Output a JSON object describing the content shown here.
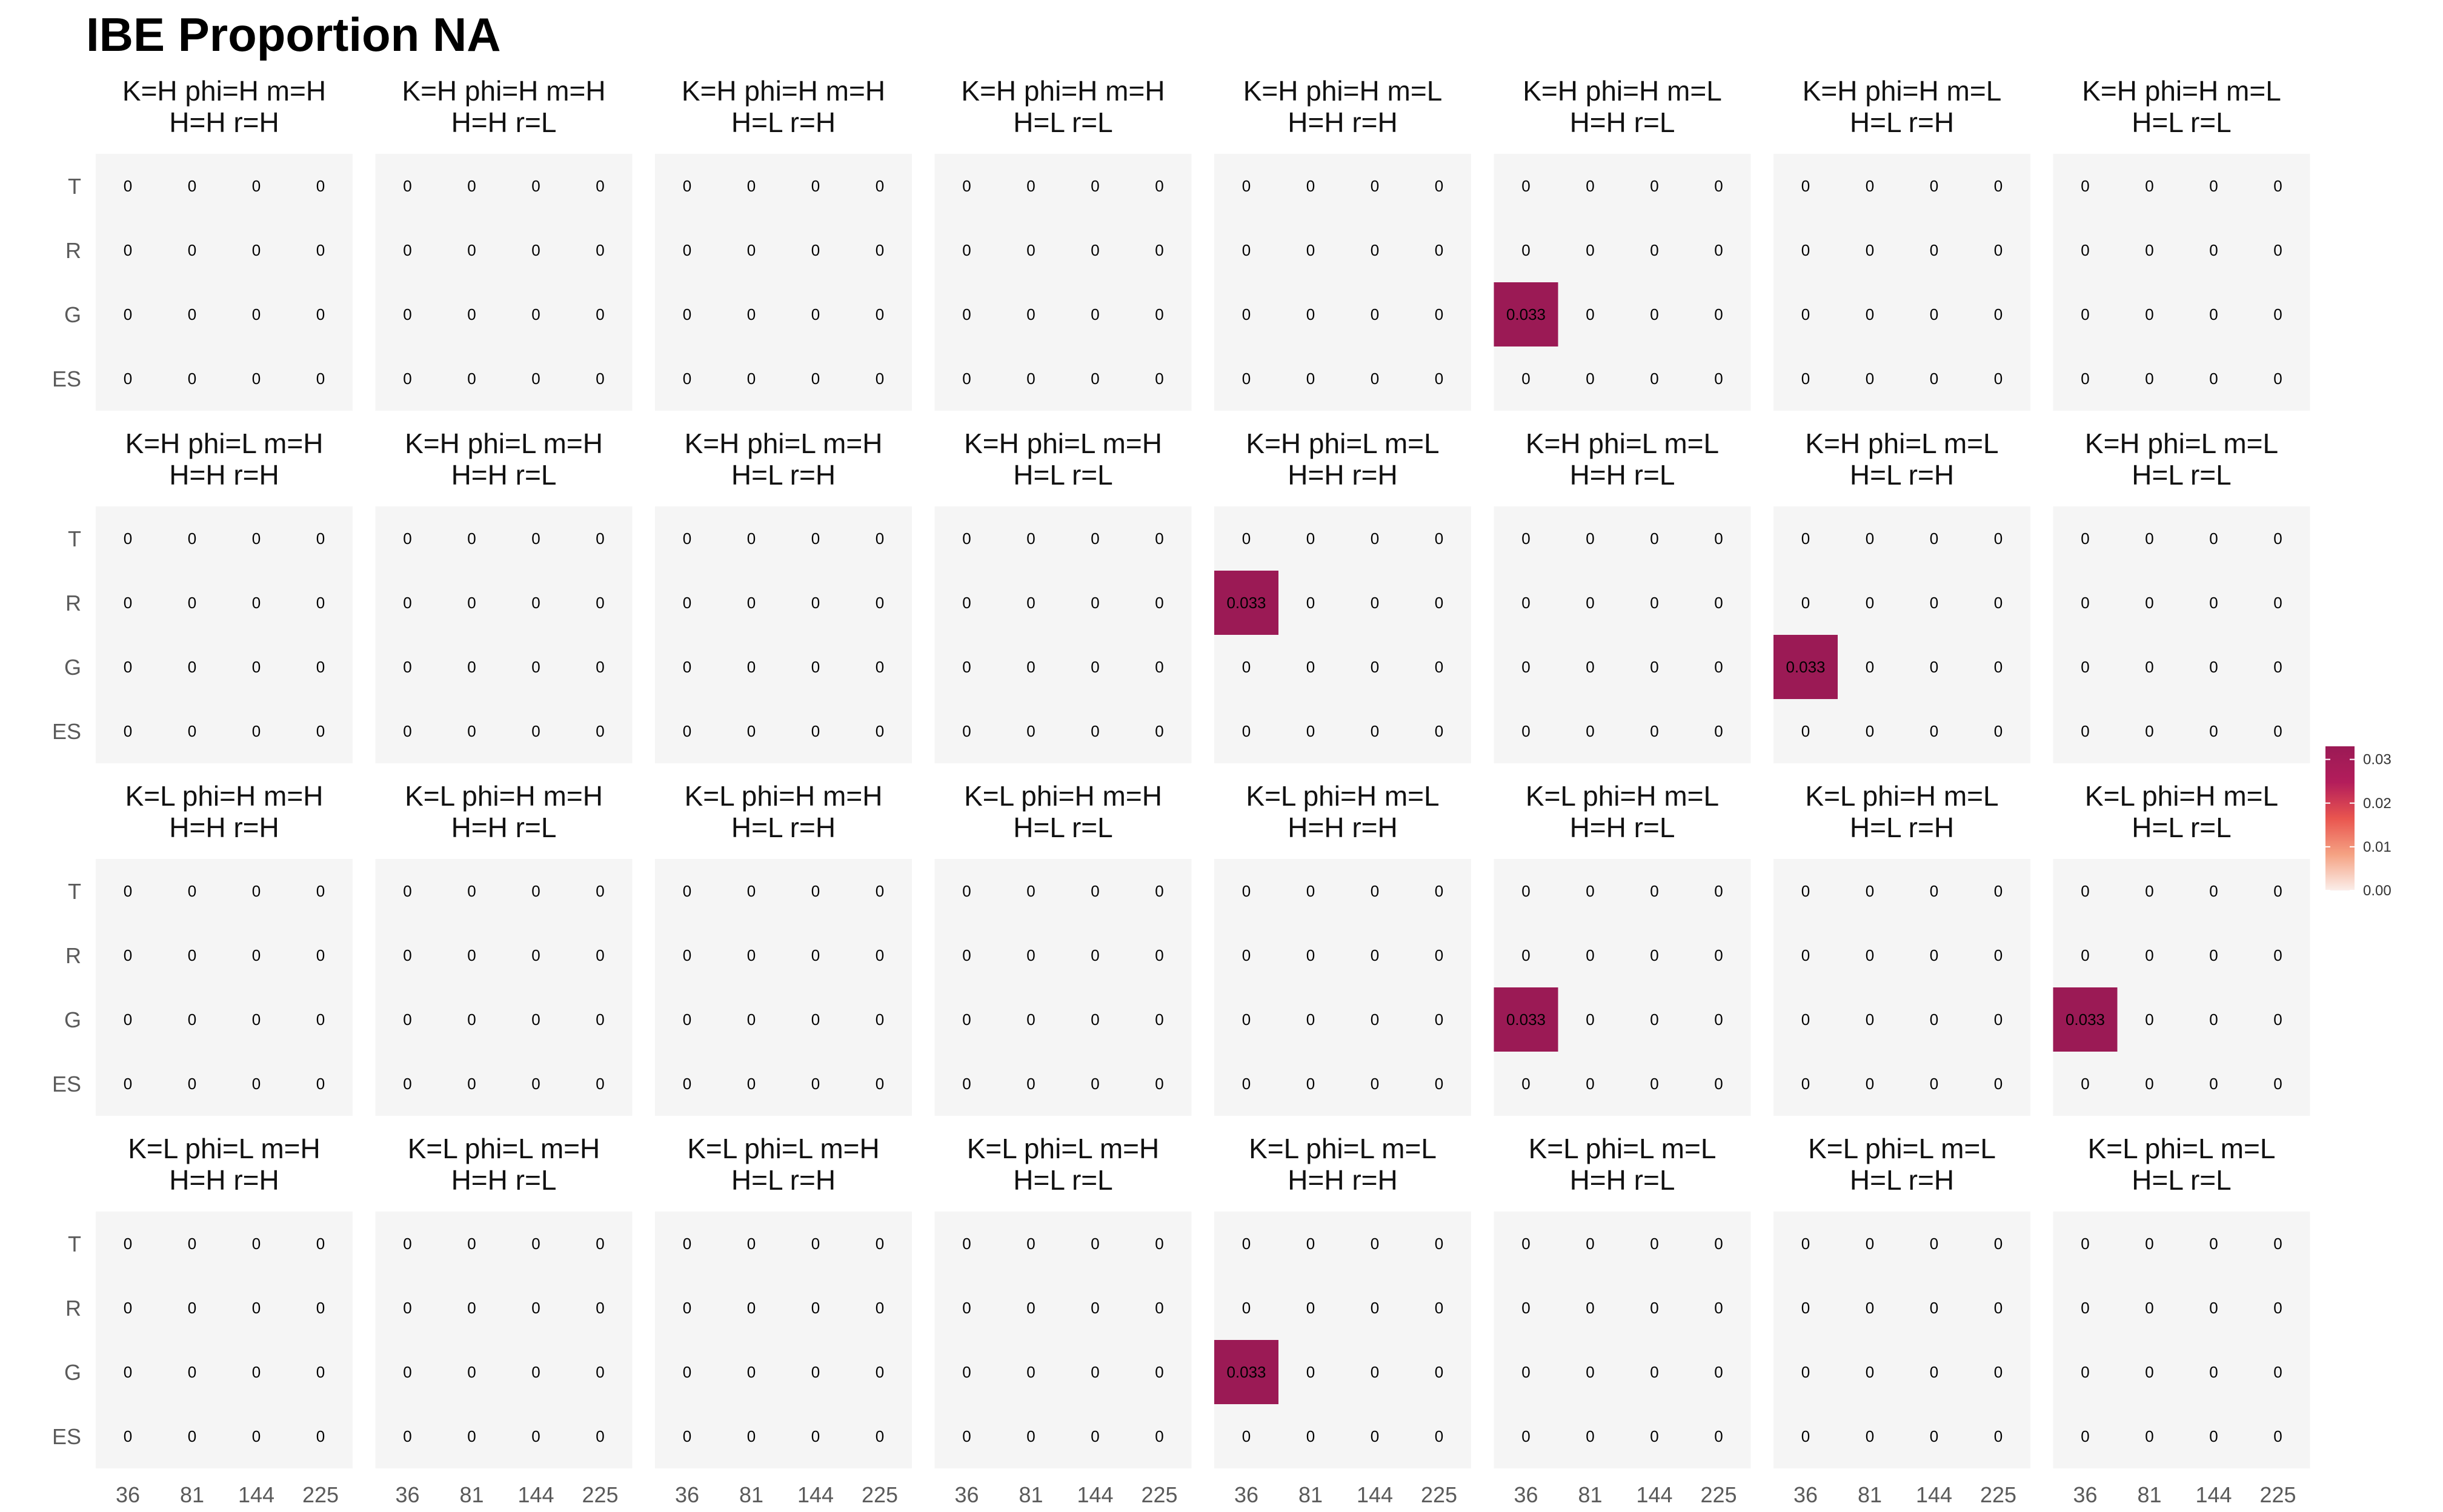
{
  "chart_data": {
    "type": "heatmap",
    "title": "IBE Proportion NA",
    "x_categories": [
      "36",
      "81",
      "144",
      "225"
    ],
    "y_categories": [
      "T",
      "R",
      "G",
      "ES"
    ],
    "facet_layout": {
      "rows": 4,
      "cols": 8
    },
    "facets": [
      {
        "label": [
          "K=H phi=H m=H",
          "H=H r=H"
        ]
      },
      {
        "label": [
          "K=H phi=H m=H",
          "H=H r=L"
        ]
      },
      {
        "label": [
          "K=H phi=H m=H",
          "H=L r=H"
        ]
      },
      {
        "label": [
          "K=H phi=H m=H",
          "H=L r=L"
        ]
      },
      {
        "label": [
          "K=H phi=H m=L",
          "H=H r=H"
        ]
      },
      {
        "label": [
          "K=H phi=H m=L",
          "H=H r=L"
        ],
        "nonzero": [
          {
            "x": "36",
            "y": "G",
            "value": 0.033
          }
        ]
      },
      {
        "label": [
          "K=H phi=H m=L",
          "H=L r=H"
        ]
      },
      {
        "label": [
          "K=H phi=H m=L",
          "H=L r=L"
        ]
      },
      {
        "label": [
          "K=H phi=L m=H",
          "H=H r=H"
        ]
      },
      {
        "label": [
          "K=H phi=L m=H",
          "H=H r=L"
        ]
      },
      {
        "label": [
          "K=H phi=L m=H",
          "H=L r=H"
        ]
      },
      {
        "label": [
          "K=H phi=L m=H",
          "H=L r=L"
        ]
      },
      {
        "label": [
          "K=H phi=L m=L",
          "H=H r=H"
        ],
        "nonzero": [
          {
            "x": "36",
            "y": "R",
            "value": 0.033
          }
        ]
      },
      {
        "label": [
          "K=H phi=L m=L",
          "H=H r=L"
        ]
      },
      {
        "label": [
          "K=H phi=L m=L",
          "H=L r=H"
        ],
        "nonzero": [
          {
            "x": "36",
            "y": "G",
            "value": 0.033
          }
        ]
      },
      {
        "label": [
          "K=H phi=L m=L",
          "H=L r=L"
        ]
      },
      {
        "label": [
          "K=L phi=H m=H",
          "H=H r=H"
        ]
      },
      {
        "label": [
          "K=L phi=H m=H",
          "H=H r=L"
        ]
      },
      {
        "label": [
          "K=L phi=H m=H",
          "H=L r=H"
        ]
      },
      {
        "label": [
          "K=L phi=H m=H",
          "H=L r=L"
        ]
      },
      {
        "label": [
          "K=L phi=H m=L",
          "H=H r=H"
        ]
      },
      {
        "label": [
          "K=L phi=H m=L",
          "H=H r=L"
        ],
        "nonzero": [
          {
            "x": "36",
            "y": "G",
            "value": 0.033
          }
        ]
      },
      {
        "label": [
          "K=L phi=H m=L",
          "H=L r=H"
        ]
      },
      {
        "label": [
          "K=L phi=H m=L",
          "H=L r=L"
        ],
        "nonzero": [
          {
            "x": "36",
            "y": "G",
            "value": 0.033
          }
        ]
      },
      {
        "label": [
          "K=L phi=L m=H",
          "H=H r=H"
        ]
      },
      {
        "label": [
          "K=L phi=L m=H",
          "H=H r=L"
        ]
      },
      {
        "label": [
          "K=L phi=L m=H",
          "H=L r=H"
        ]
      },
      {
        "label": [
          "K=L phi=L m=H",
          "H=L r=L"
        ]
      },
      {
        "label": [
          "K=L phi=L m=L",
          "H=H r=H"
        ],
        "nonzero": [
          {
            "x": "36",
            "y": "G",
            "value": 0.033
          }
        ]
      },
      {
        "label": [
          "K=L phi=L m=L",
          "H=H r=L"
        ]
      },
      {
        "label": [
          "K=L phi=L m=L",
          "H=L r=H"
        ]
      },
      {
        "label": [
          "K=L phi=L m=L",
          "H=L r=L"
        ]
      }
    ],
    "default_value_label": "0",
    "nonzero_value_label": "0.033",
    "legend": {
      "position": "right",
      "ticks": [
        "0.03",
        "0.02",
        "0.01",
        "0.00"
      ],
      "tick_values": [
        0.03,
        0.02,
        0.01,
        0.0
      ],
      "range": [
        0,
        0.033
      ],
      "colors": [
        "#fbeeea",
        "#f5a283",
        "#e9554f",
        "#b31d5b",
        "#9b1a55"
      ]
    },
    "panel_background": "#f5f5f5",
    "grid": false
  }
}
